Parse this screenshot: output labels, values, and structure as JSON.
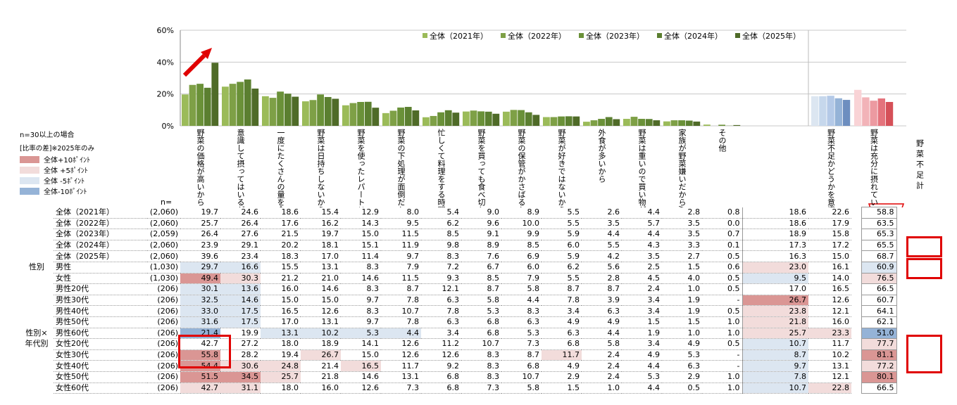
{
  "chart_data": {
    "type": "bar",
    "ylim": [
      0,
      60
    ],
    "yticks": [
      "0%",
      "20%",
      "40%",
      "60%"
    ],
    "categories": [
      "野菜の価格が高いから",
      "意識して摂ってはいるが、充分ではないと思うから",
      "一度にたくさんの量を食べられないから",
      "野菜は日持ちしないから",
      "野菜を使ったレパートリーが少ないから",
      "野菜の下処理が面倒だから",
      "忙しくて料理をする時間がないから",
      "野菜を買っても食べ切れないから",
      "野菜の保管がかさばるから",
      "野菜が好きではないから",
      "外食が多いから",
      "野菜は重いので買い物が大変だから",
      "家族が野菜嫌いだから/食卓に出てこないから",
      "その他",
      "野菜不足かどうかを意識したことはない",
      "野菜は充分に摂れていると思う"
    ],
    "series": [
      {
        "name": "全体（2021年）",
        "values": [
          19.7,
          24.6,
          18.6,
          15.4,
          12.9,
          8.0,
          5.4,
          9.0,
          8.9,
          5.5,
          2.6,
          4.4,
          2.8,
          0.8,
          18.6,
          22.6
        ]
      },
      {
        "name": "全体（2022年）",
        "values": [
          25.7,
          26.4,
          17.6,
          16.2,
          14.3,
          9.5,
          6.2,
          9.6,
          10.0,
          5.5,
          3.5,
          5.7,
          3.5,
          0.0,
          18.6,
          17.9
        ]
      },
      {
        "name": "全体（2023年）",
        "values": [
          26.4,
          27.6,
          21.5,
          19.7,
          15.0,
          11.5,
          8.5,
          9.1,
          9.9,
          5.9,
          4.4,
          4.4,
          3.5,
          0.7,
          18.9,
          15.8
        ]
      },
      {
        "name": "全体（2024年）",
        "values": [
          23.9,
          29.1,
          20.2,
          18.1,
          15.1,
          11.9,
          9.8,
          8.9,
          8.5,
          6.0,
          5.5,
          4.3,
          3.3,
          0.1,
          17.3,
          17.2
        ]
      },
      {
        "name": "全体（2025年）",
        "values": [
          39.6,
          23.4,
          18.3,
          17.0,
          11.4,
          9.7,
          8.3,
          7.6,
          6.9,
          5.9,
          4.2,
          3.5,
          2.7,
          0.5,
          16.3,
          15.0
        ]
      }
    ],
    "colors": [
      "#9bbb59",
      "#7ea046",
      "#6a9138",
      "#5b7f30",
      "#4f6b28"
    ],
    "light_colors_col15": [
      "#dce6f1",
      "#c6d7ec",
      "#b4c9e7",
      "#95b3d7",
      "#6d8ebf"
    ],
    "light_colors_col16": [
      "#f9d3d6",
      "#f2b3b8",
      "#ec9aa1",
      "#e4737c",
      "#d55058"
    ],
    "n_label": "n=",
    "condition_label": "n=30以上の場合",
    "diff_label": "[比率の差]※2025年のみ",
    "diff_legend": [
      {
        "label": "全体+10ﾎﾟｲﾝﾄ",
        "color": "#da9694"
      },
      {
        "label": "全体 +5ﾎﾟｲﾝﾄ",
        "color": "#f2dcdb"
      },
      {
        "label": "全体 -5ﾎﾟｲﾝﾄ",
        "color": "#dce6f1"
      },
      {
        "label": "全体-10ﾎﾟｲﾝﾄ",
        "color": "#95b3d7"
      }
    ],
    "extra_header": "野菜不足計",
    "table": [
      {
        "group": "",
        "label": "全体（2021年）",
        "n": "(2,060)",
        "v": [
          "19.7",
          "24.6",
          "18.6",
          "15.4",
          "12.9",
          "8.0",
          "5.4",
          "9.0",
          "8.9",
          "5.5",
          "2.6",
          "4.4",
          "2.8",
          "0.8",
          "18.6",
          "22.6"
        ],
        "total": "58.8"
      },
      {
        "group": "",
        "label": "全体（2022年）",
        "n": "(2,060)",
        "v": [
          "25.7",
          "26.4",
          "17.6",
          "16.2",
          "14.3",
          "9.5",
          "6.2",
          "9.6",
          "10.0",
          "5.5",
          "3.5",
          "5.7",
          "3.5",
          "0.0",
          "18.6",
          "17.9"
        ],
        "total": "63.5"
      },
      {
        "group": "",
        "label": "全体（2023年）",
        "n": "(2,059)",
        "v": [
          "26.4",
          "27.6",
          "21.5",
          "19.7",
          "15.0",
          "11.5",
          "8.5",
          "9.1",
          "9.9",
          "5.9",
          "4.4",
          "4.4",
          "3.5",
          "0.7",
          "18.9",
          "15.8"
        ],
        "total": "65.3"
      },
      {
        "group": "",
        "label": "全体（2024年）",
        "n": "(2,060)",
        "v": [
          "23.9",
          "29.1",
          "20.2",
          "18.1",
          "15.1",
          "11.9",
          "9.8",
          "8.9",
          "8.5",
          "6.0",
          "5.5",
          "4.3",
          "3.3",
          "0.1",
          "17.3",
          "17.2"
        ],
        "total": "65.5"
      },
      {
        "group": "",
        "label": "全体（2025年）",
        "n": "(2,060)",
        "v": [
          "39.6",
          "23.4",
          "18.3",
          "17.0",
          "11.4",
          "9.7",
          "8.3",
          "7.6",
          "6.9",
          "5.9",
          "4.2",
          "3.5",
          "2.7",
          "0.5",
          "16.3",
          "15.0"
        ],
        "total": "68.7"
      },
      {
        "group": "性別",
        "label": "男性",
        "n": "(1,030)",
        "v": [
          "29.7",
          "16.6",
          "15.5",
          "13.1",
          "8.3",
          "7.9",
          "7.2",
          "6.7",
          "6.0",
          "6.2",
          "5.6",
          "2.5",
          "1.5",
          "0.6",
          "23.0",
          "16.1"
        ],
        "total": "60.9"
      },
      {
        "group": "",
        "label": "女性",
        "n": "(1,030)",
        "v": [
          "49.4",
          "30.3",
          "21.2",
          "21.0",
          "14.6",
          "11.5",
          "9.3",
          "8.5",
          "7.9",
          "5.5",
          "2.8",
          "4.5",
          "4.0",
          "0.5",
          "9.5",
          "14.0"
        ],
        "total": "76.5"
      },
      {
        "group": "",
        "label": "男性20代",
        "n": "(206)",
        "v": [
          "30.1",
          "13.6",
          "16.0",
          "14.6",
          "8.3",
          "8.7",
          "12.1",
          "8.7",
          "5.8",
          "8.7",
          "8.7",
          "2.4",
          "1.0",
          "0.5",
          "17.0",
          "16.5"
        ],
        "total": "66.5"
      },
      {
        "group": "",
        "label": "男性30代",
        "n": "(206)",
        "v": [
          "32.5",
          "14.6",
          "15.0",
          "15.0",
          "9.7",
          "7.8",
          "6.3",
          "5.8",
          "4.4",
          "7.8",
          "3.9",
          "3.4",
          "1.9",
          "-",
          "26.7",
          "12.6"
        ],
        "total": "60.7"
      },
      {
        "group": "",
        "label": "男性40代",
        "n": "(206)",
        "v": [
          "33.0",
          "17.5",
          "16.5",
          "12.6",
          "8.3",
          "10.7",
          "7.8",
          "5.3",
          "8.3",
          "3.4",
          "6.3",
          "3.4",
          "1.9",
          "0.5",
          "23.8",
          "12.1"
        ],
        "total": "64.1"
      },
      {
        "group": "",
        "label": "男性50代",
        "n": "(206)",
        "v": [
          "31.6",
          "17.5",
          "17.0",
          "13.1",
          "9.7",
          "7.8",
          "6.3",
          "6.8",
          "6.3",
          "4.9",
          "4.9",
          "1.5",
          "1.5",
          "1.0",
          "21.8",
          "16.0"
        ],
        "total": "62.1"
      },
      {
        "group": "性別×",
        "label": "男性60代",
        "n": "(206)",
        "v": [
          "21.4",
          "19.9",
          "13.1",
          "10.2",
          "5.3",
          "4.4",
          "3.4",
          "6.8",
          "5.3",
          "6.3",
          "4.4",
          "1.9",
          "1.0",
          "1.0",
          "25.7",
          "23.3"
        ],
        "total": "51.0"
      },
      {
        "group": "年代別",
        "label": "女性20代",
        "n": "(206)",
        "v": [
          "42.7",
          "27.2",
          "18.0",
          "18.9",
          "14.1",
          "12.6",
          "11.2",
          "10.7",
          "7.3",
          "6.8",
          "5.8",
          "3.4",
          "4.9",
          "0.5",
          "10.7",
          "11.7"
        ],
        "total": "77.7"
      },
      {
        "group": "",
        "label": "女性30代",
        "n": "(206)",
        "v": [
          "55.8",
          "28.2",
          "19.4",
          "26.7",
          "15.0",
          "12.6",
          "12.6",
          "8.3",
          "8.7",
          "11.7",
          "2.4",
          "4.9",
          "5.3",
          "-",
          "8.7",
          "10.2"
        ],
        "total": "81.1"
      },
      {
        "group": "",
        "label": "女性40代",
        "n": "(206)",
        "v": [
          "54.4",
          "30.6",
          "24.8",
          "21.4",
          "16.5",
          "11.7",
          "9.2",
          "8.3",
          "6.8",
          "4.9",
          "2.4",
          "4.4",
          "6.3",
          "-",
          "9.7",
          "13.1"
        ],
        "total": "77.2"
      },
      {
        "group": "",
        "label": "女性50代",
        "n": "(206)",
        "v": [
          "51.5",
          "34.5",
          "25.7",
          "21.8",
          "14.6",
          "13.1",
          "6.8",
          "8.3",
          "10.7",
          "2.9",
          "2.4",
          "5.3",
          "2.9",
          "1.0",
          "7.8",
          "12.1"
        ],
        "total": "80.1"
      },
      {
        "group": "",
        "label": "女性60代",
        "n": "(206)",
        "v": [
          "42.7",
          "31.1",
          "18.0",
          "16.0",
          "12.6",
          "7.3",
          "6.8",
          "7.3",
          "5.8",
          "1.5",
          "1.0",
          "4.4",
          "0.5",
          "1.0",
          "10.7",
          "22.8"
        ],
        "total": "66.5"
      }
    ],
    "cell_colors": {
      "5": {
        "0": "#dce6f1",
        "1": "#dce6f1",
        "14": "#f2dcdb",
        "total": "#dce6f1"
      },
      "6": {
        "0": "#da9694",
        "1": "#f2dcdb",
        "14": "#dce6f1",
        "total": "#f2dcdb"
      },
      "7": {
        "0": "#dce6f1",
        "1": "#dce6f1"
      },
      "8": {
        "0": "#dce6f1",
        "1": "#dce6f1",
        "14": "#da9694"
      },
      "9": {
        "0": "#dce6f1",
        "1": "#dce6f1",
        "14": "#f2dcdb"
      },
      "10": {
        "0": "#dce6f1",
        "1": "#dce6f1",
        "14": "#f2dcdb"
      },
      "11": {
        "0": "#95b3d7",
        "2": "#dce6f1",
        "3": "#dce6f1",
        "4": "#dce6f1",
        "5": "#dce6f1",
        "14": "#f2dcdb",
        "15": "#f2dcdb",
        "total": "#95b3d7"
      },
      "12": {
        "14": "#dce6f1",
        "total": "#f2dcdb"
      },
      "13": {
        "0": "#da9694",
        "3": "#f2dcdb",
        "9": "#f2dcdb",
        "14": "#dce6f1",
        "total": "#da9694"
      },
      "14": {
        "0": "#da9694",
        "1": "#f2dcdb",
        "2": "#f2dcdb",
        "4": "#f2dcdb",
        "14": "#dce6f1",
        "total": "#f2dcdb"
      },
      "15": {
        "0": "#da9694",
        "1": "#da9694",
        "2": "#f2dcdb",
        "14": "#dce6f1",
        "total": "#da9694"
      },
      "16": {
        "0": "#f2dcdb",
        "1": "#f2dcdb",
        "14": "#dce6f1",
        "15": "#f2dcdb"
      }
    }
  }
}
